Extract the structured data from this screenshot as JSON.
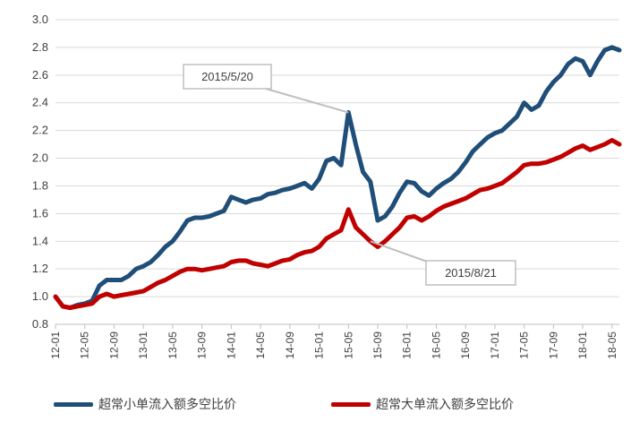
{
  "chart_data": {
    "type": "line",
    "title": "",
    "xlabel": "",
    "ylabel": "",
    "ylim": [
      0.8,
      3.0
    ],
    "y_ticks": [
      "3.0",
      "2.8",
      "2.6",
      "2.4",
      "2.2",
      "2.0",
      "1.8",
      "1.6",
      "1.4",
      "1.2",
      "1.0",
      "0.8"
    ],
    "x_ticks": [
      "12-01",
      "12-05",
      "12-09",
      "13-01",
      "13-05",
      "13-09",
      "14-01",
      "14-05",
      "14-09",
      "15-01",
      "15-05",
      "15-09",
      "16-01",
      "16-05",
      "16-09",
      "17-01",
      "17-05",
      "17-09",
      "18-01",
      "18-05"
    ],
    "grid": true,
    "legend_position": "bottom",
    "series": [
      {
        "name": "超常小单流入额多空比价",
        "color": "#1F4E79",
        "points": [
          [
            "12-01",
            1.0
          ],
          [
            "12-02",
            0.93
          ],
          [
            "12-03",
            0.92
          ],
          [
            "12-04",
            0.94
          ],
          [
            "12-05",
            0.95
          ],
          [
            "12-06",
            0.97
          ],
          [
            "12-07",
            1.08
          ],
          [
            "12-08",
            1.12
          ],
          [
            "12-09",
            1.12
          ],
          [
            "12-10",
            1.12
          ],
          [
            "12-11",
            1.15
          ],
          [
            "12-12",
            1.2
          ],
          [
            "13-01",
            1.22
          ],
          [
            "13-02",
            1.25
          ],
          [
            "13-03",
            1.3
          ],
          [
            "13-04",
            1.36
          ],
          [
            "13-05",
            1.4
          ],
          [
            "13-06",
            1.47
          ],
          [
            "13-07",
            1.55
          ],
          [
            "13-08",
            1.57
          ],
          [
            "13-09",
            1.57
          ],
          [
            "13-10",
            1.58
          ],
          [
            "13-11",
            1.6
          ],
          [
            "13-12",
            1.62
          ],
          [
            "14-01",
            1.72
          ],
          [
            "14-02",
            1.7
          ],
          [
            "14-03",
            1.68
          ],
          [
            "14-04",
            1.7
          ],
          [
            "14-05",
            1.71
          ],
          [
            "14-06",
            1.74
          ],
          [
            "14-07",
            1.75
          ],
          [
            "14-08",
            1.77
          ],
          [
            "14-09",
            1.78
          ],
          [
            "14-10",
            1.8
          ],
          [
            "14-11",
            1.82
          ],
          [
            "14-12",
            1.78
          ],
          [
            "15-01",
            1.85
          ],
          [
            "15-02",
            1.98
          ],
          [
            "15-03",
            2.0
          ],
          [
            "15-04",
            1.95
          ],
          [
            "15-05",
            2.33
          ],
          [
            "15-06",
            2.1
          ],
          [
            "15-07",
            1.9
          ],
          [
            "15-08",
            1.83
          ],
          [
            "15-09",
            1.55
          ],
          [
            "15-10",
            1.58
          ],
          [
            "15-11",
            1.65
          ],
          [
            "15-12",
            1.75
          ],
          [
            "16-01",
            1.83
          ],
          [
            "16-02",
            1.82
          ],
          [
            "16-03",
            1.76
          ],
          [
            "16-04",
            1.73
          ],
          [
            "16-05",
            1.78
          ],
          [
            "16-06",
            1.82
          ],
          [
            "16-07",
            1.85
          ],
          [
            "16-08",
            1.9
          ],
          [
            "16-09",
            1.97
          ],
          [
            "16-10",
            2.05
          ],
          [
            "16-11",
            2.1
          ],
          [
            "16-12",
            2.15
          ],
          [
            "17-01",
            2.18
          ],
          [
            "17-02",
            2.2
          ],
          [
            "17-03",
            2.25
          ],
          [
            "17-04",
            2.3
          ],
          [
            "17-05",
            2.4
          ],
          [
            "17-06",
            2.35
          ],
          [
            "17-07",
            2.38
          ],
          [
            "17-08",
            2.48
          ],
          [
            "17-09",
            2.55
          ],
          [
            "17-10",
            2.6
          ],
          [
            "17-11",
            2.68
          ],
          [
            "17-12",
            2.72
          ],
          [
            "18-01",
            2.7
          ],
          [
            "18-02",
            2.6
          ],
          [
            "18-03",
            2.7
          ],
          [
            "18-04",
            2.78
          ],
          [
            "18-05",
            2.8
          ],
          [
            "18-06",
            2.78
          ]
        ]
      },
      {
        "name": "超常大单流入额多空比价",
        "color": "#C00000",
        "points": [
          [
            "12-01",
            1.0
          ],
          [
            "12-02",
            0.93
          ],
          [
            "12-03",
            0.92
          ],
          [
            "12-04",
            0.93
          ],
          [
            "12-05",
            0.94
          ],
          [
            "12-06",
            0.95
          ],
          [
            "12-07",
            1.0
          ],
          [
            "12-08",
            1.02
          ],
          [
            "12-09",
            1.0
          ],
          [
            "12-10",
            1.01
          ],
          [
            "12-11",
            1.02
          ],
          [
            "12-12",
            1.03
          ],
          [
            "13-01",
            1.04
          ],
          [
            "13-02",
            1.07
          ],
          [
            "13-03",
            1.1
          ],
          [
            "13-04",
            1.12
          ],
          [
            "13-05",
            1.15
          ],
          [
            "13-06",
            1.18
          ],
          [
            "13-07",
            1.2
          ],
          [
            "13-08",
            1.2
          ],
          [
            "13-09",
            1.19
          ],
          [
            "13-10",
            1.2
          ],
          [
            "13-11",
            1.21
          ],
          [
            "13-12",
            1.22
          ],
          [
            "14-01",
            1.25
          ],
          [
            "14-02",
            1.26
          ],
          [
            "14-03",
            1.26
          ],
          [
            "14-04",
            1.24
          ],
          [
            "14-05",
            1.23
          ],
          [
            "14-06",
            1.22
          ],
          [
            "14-07",
            1.24
          ],
          [
            "14-08",
            1.26
          ],
          [
            "14-09",
            1.27
          ],
          [
            "14-10",
            1.3
          ],
          [
            "14-11",
            1.32
          ],
          [
            "14-12",
            1.33
          ],
          [
            "15-01",
            1.36
          ],
          [
            "15-02",
            1.42
          ],
          [
            "15-03",
            1.45
          ],
          [
            "15-04",
            1.48
          ],
          [
            "15-05",
            1.63
          ],
          [
            "15-06",
            1.5
          ],
          [
            "15-07",
            1.45
          ],
          [
            "15-08",
            1.4
          ],
          [
            "15-09",
            1.36
          ],
          [
            "15-10",
            1.4
          ],
          [
            "15-11",
            1.45
          ],
          [
            "15-12",
            1.5
          ],
          [
            "16-01",
            1.57
          ],
          [
            "16-02",
            1.58
          ],
          [
            "16-03",
            1.55
          ],
          [
            "16-04",
            1.58
          ],
          [
            "16-05",
            1.62
          ],
          [
            "16-06",
            1.65
          ],
          [
            "16-07",
            1.67
          ],
          [
            "16-08",
            1.69
          ],
          [
            "16-09",
            1.71
          ],
          [
            "16-10",
            1.74
          ],
          [
            "16-11",
            1.77
          ],
          [
            "16-12",
            1.78
          ],
          [
            "17-01",
            1.8
          ],
          [
            "17-02",
            1.82
          ],
          [
            "17-03",
            1.86
          ],
          [
            "17-04",
            1.9
          ],
          [
            "17-05",
            1.95
          ],
          [
            "17-06",
            1.96
          ],
          [
            "17-07",
            1.96
          ],
          [
            "17-08",
            1.97
          ],
          [
            "17-09",
            1.99
          ],
          [
            "17-10",
            2.01
          ],
          [
            "17-11",
            2.04
          ],
          [
            "17-12",
            2.07
          ],
          [
            "18-01",
            2.09
          ],
          [
            "18-02",
            2.06
          ],
          [
            "18-03",
            2.08
          ],
          [
            "18-04",
            2.1
          ],
          [
            "18-05",
            2.13
          ],
          [
            "18-06",
            2.1
          ]
        ]
      }
    ],
    "annotations": [
      {
        "text": "2015/5/20",
        "x": "15-05",
        "y": 2.33
      },
      {
        "text": "2015/8/21",
        "x": "15-08",
        "y": 1.4
      }
    ]
  }
}
